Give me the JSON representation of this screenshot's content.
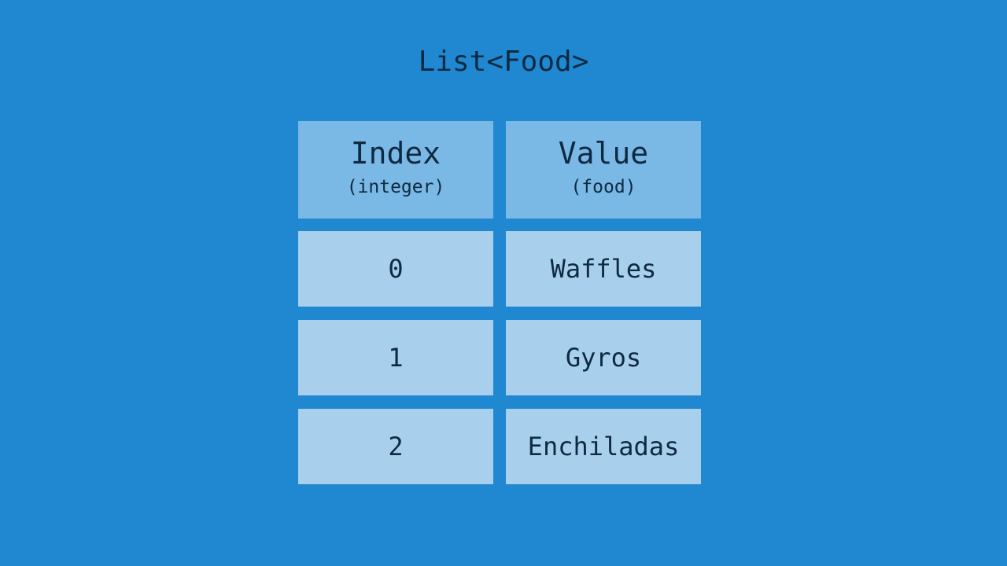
{
  "title": "List<Food>",
  "header": {
    "index": {
      "label": "Index",
      "type": "(integer)"
    },
    "value": {
      "label": "Value",
      "type": "(food)"
    }
  },
  "rows": [
    {
      "index": "0",
      "value": "Waffles"
    },
    {
      "index": "1",
      "value": "Gyros"
    },
    {
      "index": "2",
      "value": "Enchiladas"
    }
  ],
  "colors": {
    "background": "#2088d0",
    "header": "#7ab8e5",
    "cell": "#a8cfeb",
    "text": "#0e2a42"
  }
}
